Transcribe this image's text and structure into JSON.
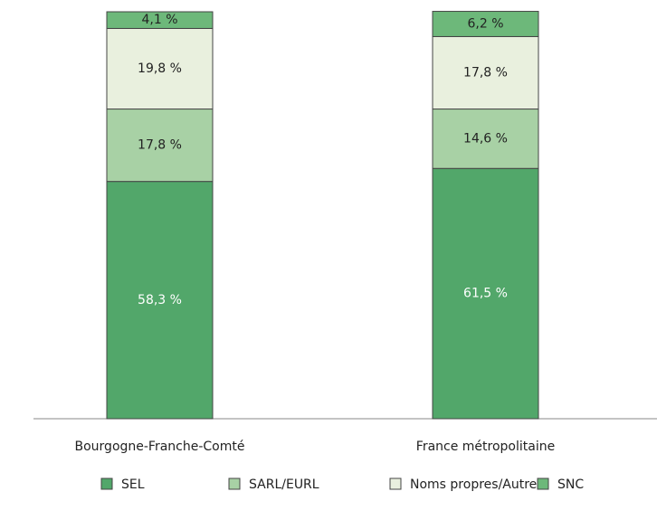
{
  "chart_data": {
    "type": "stacked_bar",
    "categories": [
      "Bourgogne-Franche-Comté",
      "France métropolitaine"
    ],
    "series": [
      {
        "name": "SEL",
        "color": "#52a76a",
        "values": [
          58.3,
          61.5
        ],
        "value_labels": [
          "58,3 %",
          "61,5 %"
        ]
      },
      {
        "name": "SARL/EURL",
        "color": "#a8d1a5",
        "values": [
          17.8,
          14.6
        ],
        "value_labels": [
          "17,8 %",
          "14,6 %"
        ]
      },
      {
        "name": "Noms propres/Autres",
        "color": "#e9f0de",
        "values": [
          19.8,
          17.8
        ],
        "value_labels": [
          "19,8 %",
          "17,8 %"
        ]
      },
      {
        "name": "SNC",
        "color": "#6db87a",
        "values": [
          4.1,
          6.2
        ],
        "value_labels": [
          "4,1 %",
          "6,2 %"
        ]
      }
    ],
    "ylim": [
      0,
      100
    ],
    "legend": "bottom"
  }
}
